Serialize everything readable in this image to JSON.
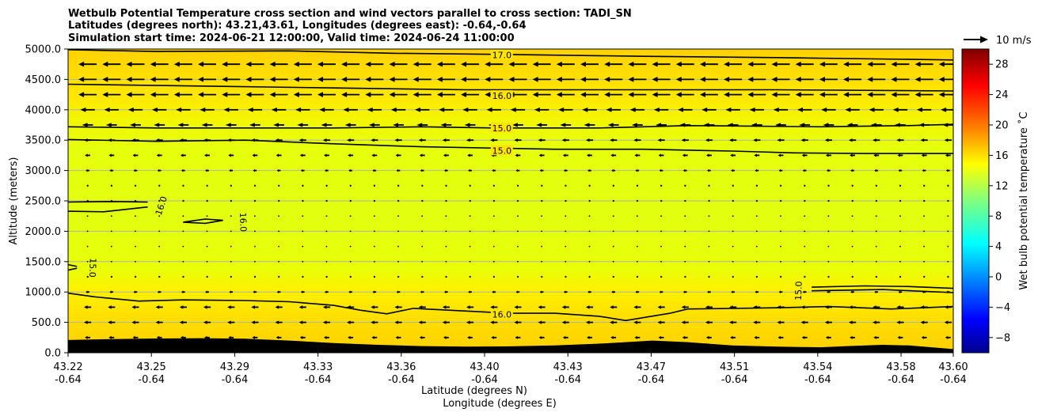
{
  "title_lines": [
    "Wetbulb Potential Temperature cross section and wind vectors parallel to cross section: TADI_SN",
    "Latitudes (degrees north): 43.21,43.61, Longitudes (degrees east): -0.64,-0.64",
    "Simulation start time: 2024-06-21 12:00:00, Valid time: 2024-06-24 11:00:00"
  ],
  "quiver_key_label": "10 m/s",
  "chart_data": {
    "type": "heatmap",
    "xlabel_lines": [
      "Latitude (degrees N)",
      "Longitude (degrees E)"
    ],
    "ylabel": "Altitude (meters)",
    "colorbar_label": "Wet bulb potential temperature ˚C",
    "ylim": [
      0,
      5000
    ],
    "colorbar_range": [
      -10,
      30
    ],
    "x_ticks": [
      {
        "lat": "43.22",
        "lon": "-0.64"
      },
      {
        "lat": "43.25",
        "lon": "-0.64"
      },
      {
        "lat": "43.29",
        "lon": "-0.64"
      },
      {
        "lat": "43.33",
        "lon": "-0.64"
      },
      {
        "lat": "43.36",
        "lon": "-0.64"
      },
      {
        "lat": "43.40",
        "lon": "-0.64"
      },
      {
        "lat": "43.43",
        "lon": "-0.64"
      },
      {
        "lat": "43.47",
        "lon": "-0.64"
      },
      {
        "lat": "43.51",
        "lon": "-0.64"
      },
      {
        "lat": "43.54",
        "lon": "-0.64"
      },
      {
        "lat": "43.58",
        "lon": "-0.64"
      },
      {
        "lat": "43.60",
        "lon": "-0.64"
      }
    ],
    "y_ticks": [
      "0.0",
      "500.0",
      "1000.0",
      "1500.0",
      "2000.0",
      "2500.0",
      "3000.0",
      "3500.0",
      "4000.0",
      "4500.0",
      "5000.0"
    ],
    "colorbar_ticks": [
      "−8",
      "−4",
      "0",
      "4",
      "8",
      "12",
      "16",
      "20",
      "24",
      "28"
    ],
    "grid": "horizontal",
    "contour_labels": [
      {
        "text": "17.0",
        "x": 0.49,
        "alt": 4900,
        "rot": 0
      },
      {
        "text": "16.0",
        "x": 0.49,
        "alt": 4230,
        "rot": 0
      },
      {
        "text": "15.0",
        "x": 0.49,
        "alt": 3700,
        "rot": 0
      },
      {
        "text": "15.0",
        "x": 0.49,
        "alt": 3330,
        "rot": 0
      },
      {
        "text": "16.0",
        "x": 0.105,
        "alt": 2420,
        "rot": -72
      },
      {
        "text": "16.0",
        "x": 0.198,
        "alt": 2150,
        "rot": 88
      },
      {
        "text": "15.0",
        "x": 0.028,
        "alt": 1400,
        "rot": 92
      },
      {
        "text": "15.0",
        "x": 0.825,
        "alt": 1020,
        "rot": -88
      },
      {
        "text": "16.0",
        "x": 0.49,
        "alt": 630,
        "rot": 0
      }
    ],
    "contour_lines": [
      [
        [
          0,
          4990
        ],
        [
          0.1,
          4960
        ],
        [
          0.25,
          4970
        ],
        [
          0.37,
          4930
        ],
        [
          0.5,
          4910
        ],
        [
          0.65,
          4880
        ],
        [
          0.8,
          4860
        ],
        [
          1,
          4820
        ]
      ],
      [
        [
          0,
          4420
        ],
        [
          0.15,
          4390
        ],
        [
          0.3,
          4360
        ],
        [
          0.45,
          4330
        ],
        [
          0.6,
          4330
        ],
        [
          0.8,
          4330
        ],
        [
          1,
          4310
        ]
      ],
      [
        [
          0,
          3720
        ],
        [
          0.1,
          3700
        ],
        [
          0.3,
          3700
        ],
        [
          0.4,
          3720
        ],
        [
          0.48,
          3700
        ],
        [
          0.6,
          3700
        ],
        [
          0.7,
          3740
        ],
        [
          0.85,
          3720
        ],
        [
          0.95,
          3740
        ],
        [
          1,
          3760
        ]
      ],
      [
        [
          0,
          3510
        ],
        [
          0.1,
          3480
        ],
        [
          0.2,
          3500
        ],
        [
          0.3,
          3440
        ],
        [
          0.4,
          3390
        ],
        [
          0.55,
          3350
        ],
        [
          0.65,
          3350
        ],
        [
          0.75,
          3320
        ],
        [
          0.82,
          3290
        ],
        [
          0.9,
          3280
        ],
        [
          1,
          3280
        ]
      ],
      [
        [
          0,
          2480
        ],
        [
          0.05,
          2490
        ],
        [
          0.09,
          2480
        ]
      ],
      [
        [
          0,
          2330
        ],
        [
          0.04,
          2320
        ],
        [
          0.09,
          2400
        ]
      ],
      [
        [
          0.13,
          2150
        ],
        [
          0.155,
          2200
        ],
        [
          0.175,
          2180
        ],
        [
          0.155,
          2130
        ],
        [
          0.13,
          2150
        ]
      ],
      [
        [
          0,
          1360
        ],
        [
          0.01,
          1390
        ]
      ],
      [
        [
          0,
          1450
        ],
        [
          0.01,
          1420
        ]
      ],
      [
        [
          0,
          980
        ],
        [
          0.03,
          920
        ],
        [
          0.08,
          850
        ],
        [
          0.13,
          870
        ],
        [
          0.2,
          860
        ],
        [
          0.25,
          840
        ],
        [
          0.3,
          780
        ],
        [
          0.33,
          700
        ],
        [
          0.36,
          640
        ],
        [
          0.39,
          730
        ],
        [
          0.5,
          650
        ],
        [
          0.55,
          650
        ],
        [
          0.6,
          600
        ],
        [
          0.63,
          530
        ],
        [
          0.68,
          650
        ],
        [
          0.7,
          720
        ],
        [
          0.8,
          740
        ],
        [
          0.86,
          760
        ],
        [
          0.93,
          720
        ],
        [
          1,
          760
        ]
      ],
      [
        [
          0.84,
          1080
        ],
        [
          0.9,
          1100
        ],
        [
          0.95,
          1090
        ],
        [
          1,
          1060
        ]
      ],
      [
        [
          0.84,
          1020
        ],
        [
          0.92,
          1040
        ],
        [
          1,
          990
        ]
      ]
    ],
    "terrain_alt": [
      [
        0,
        210
      ],
      [
        0.05,
        225
      ],
      [
        0.1,
        235
      ],
      [
        0.15,
        240
      ],
      [
        0.2,
        230
      ],
      [
        0.25,
        200
      ],
      [
        0.3,
        160
      ],
      [
        0.35,
        130
      ],
      [
        0.4,
        110
      ],
      [
        0.45,
        100
      ],
      [
        0.5,
        105
      ],
      [
        0.55,
        120
      ],
      [
        0.6,
        150
      ],
      [
        0.63,
        175
      ],
      [
        0.66,
        200
      ],
      [
        0.7,
        175
      ],
      [
        0.75,
        120
      ],
      [
        0.8,
        100
      ],
      [
        0.85,
        90
      ],
      [
        0.88,
        110
      ],
      [
        0.92,
        130
      ],
      [
        0.95,
        120
      ],
      [
        1,
        60
      ]
    ],
    "wind_rows": [
      {
        "alt": 4750,
        "u": -10,
        "step": 0.027
      },
      {
        "alt": 4500,
        "u": -10,
        "step": 0.027
      },
      {
        "alt": 4250,
        "u": -10,
        "step": 0.027
      },
      {
        "alt": 4000,
        "u": -8,
        "step": 0.027
      },
      {
        "alt": 3750,
        "u": -6,
        "step": 0.027
      },
      {
        "alt": 3500,
        "u": -4,
        "step": 0.027
      },
      {
        "alt": 3250,
        "u": -3,
        "step": 0.027
      },
      {
        "alt": 3000,
        "u": -2,
        "step": 0.027
      },
      {
        "alt": 2750,
        "u": -1,
        "step": 0.027
      },
      {
        "alt": 2500,
        "u": -1,
        "step": 0.027
      },
      {
        "alt": 2250,
        "u": -0.5,
        "step": 0.027
      },
      {
        "alt": 2000,
        "u": -0.5,
        "step": 0.027
      },
      {
        "alt": 1750,
        "u": -0.5,
        "step": 0.027
      },
      {
        "alt": 1500,
        "u": -0.5,
        "step": 0.027
      },
      {
        "alt": 1250,
        "u": -1,
        "step": 0.027
      },
      {
        "alt": 1000,
        "u": -2,
        "step": 0.027
      },
      {
        "alt": 750,
        "u": -4,
        "step": 0.027
      },
      {
        "alt": 500,
        "u": -4,
        "step": 0.027
      },
      {
        "alt": 250,
        "u": -3,
        "step": 0.027
      }
    ],
    "colors": {
      "band_top": "#ffd400",
      "band_upper": "#ffe400",
      "band_mid": "#e4ff10",
      "band_low": "#ffe800",
      "band_bottom": "#ffd000",
      "terrain": "#000000",
      "gridline": "#b0b0b0"
    }
  }
}
